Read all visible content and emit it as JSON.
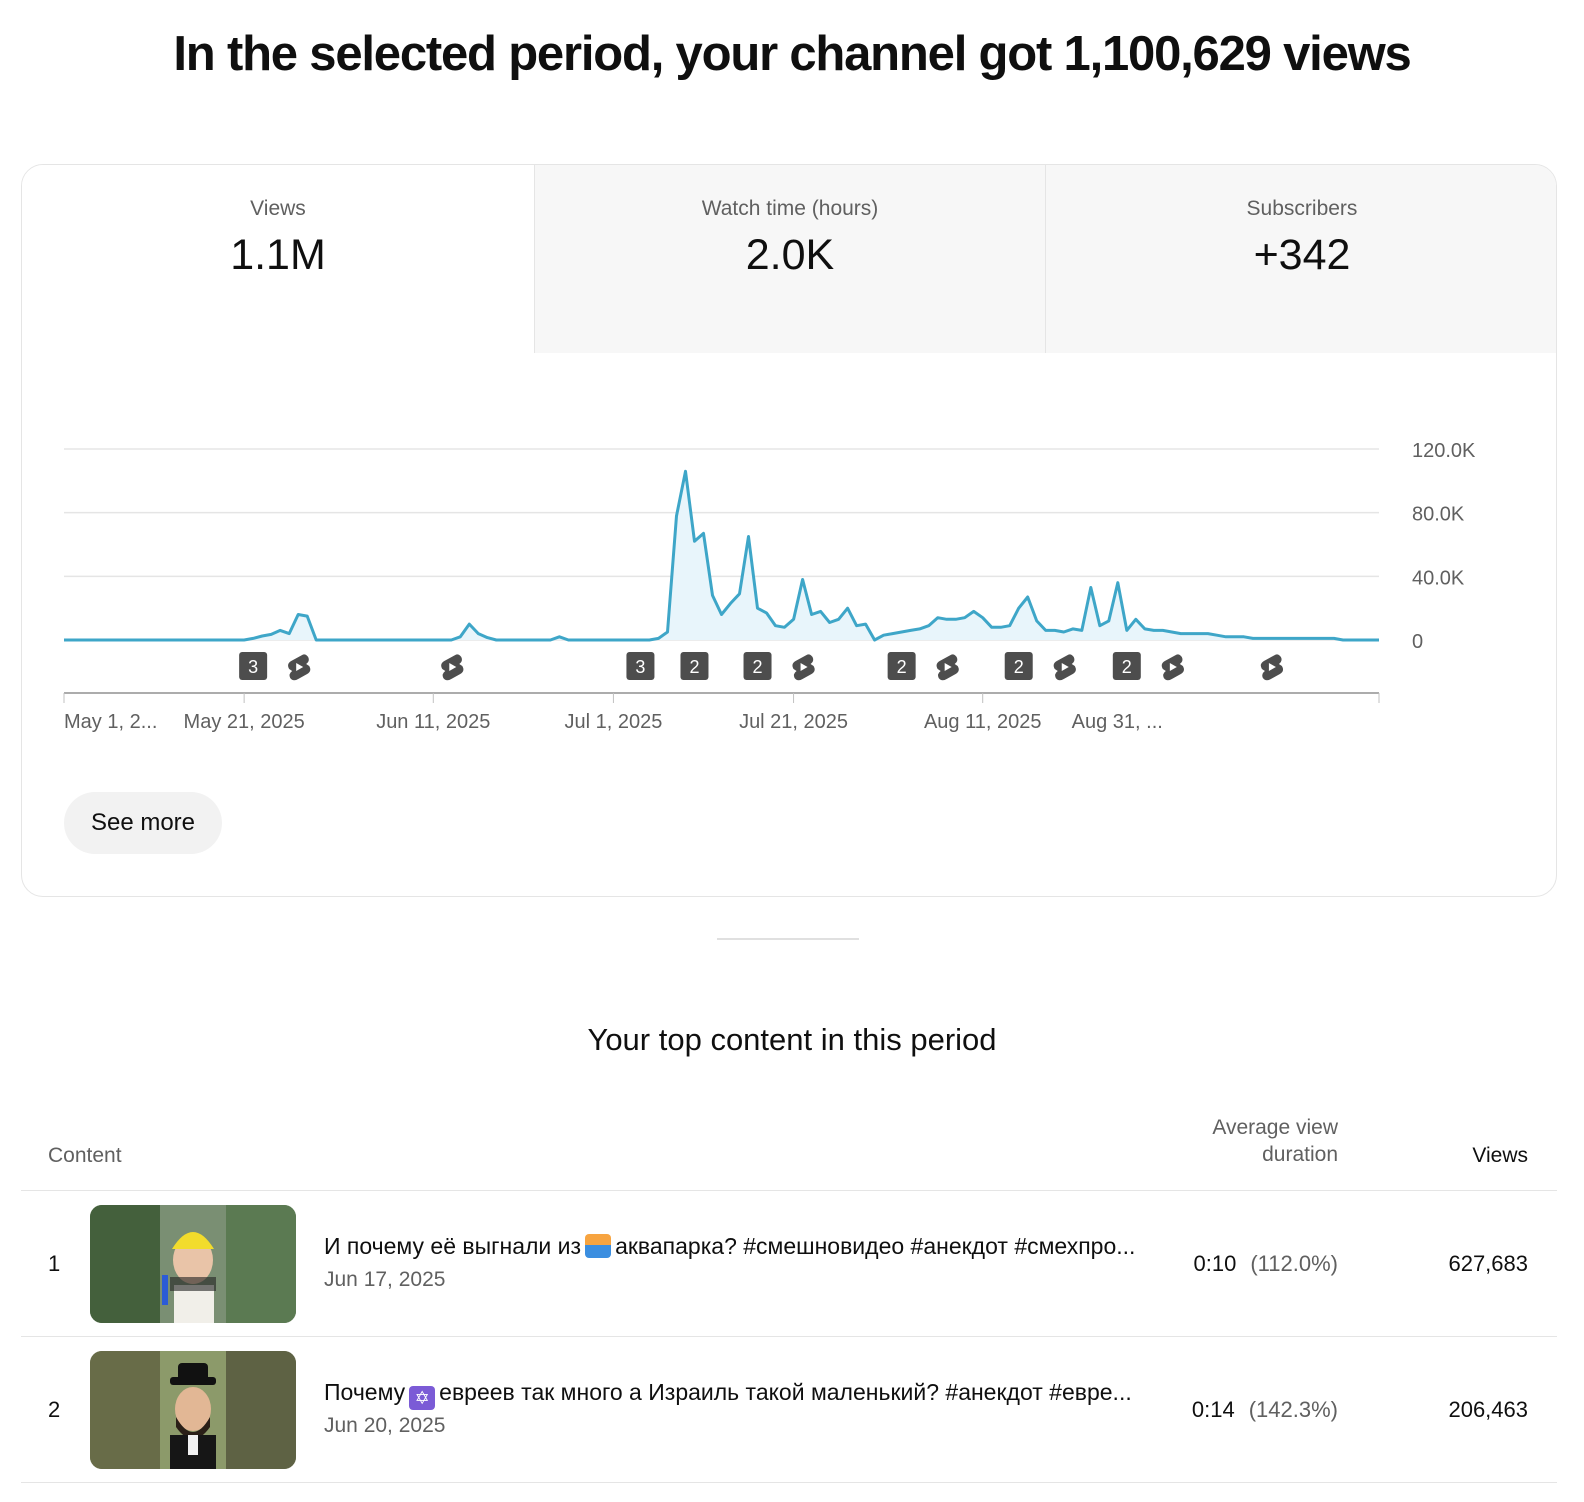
{
  "headline": "In the selected period, your channel got 1,100,629 views",
  "metrics": [
    {
      "label": "Views",
      "value": "1.1M"
    },
    {
      "label": "Watch time (hours)",
      "value": "2.0K"
    },
    {
      "label": "Subscribers",
      "value": "+342"
    }
  ],
  "colors": {
    "line": "#3ea6c8",
    "fill": "#e8f5fb",
    "grid": "#e5e5e5",
    "marker": "#4d4d4d"
  },
  "chart_data": {
    "type": "area",
    "series": [
      {
        "values": [
          0,
          0,
          0,
          0,
          0,
          0,
          0,
          0,
          0,
          0,
          0,
          0,
          0,
          0,
          0,
          0,
          0,
          0,
          0,
          0,
          0,
          1000,
          2500,
          3500,
          6000,
          4000,
          16000,
          15000,
          0,
          0,
          0,
          0,
          0,
          0,
          0,
          0,
          0,
          0,
          0,
          0,
          0,
          0,
          0,
          0,
          2000,
          10000,
          4000,
          1500,
          0,
          0,
          0,
          0,
          0,
          0,
          0,
          2000,
          0,
          0,
          0,
          0,
          0,
          0,
          0,
          0,
          0,
          0,
          1000,
          5000,
          78000,
          106000,
          62000,
          67000,
          28000,
          16000,
          23000,
          29000,
          65000,
          20000,
          17000,
          9000,
          8000,
          13000,
          38000,
          16000,
          18000,
          11000,
          13000,
          20000,
          9000,
          10000,
          0,
          3000,
          4000,
          5000,
          6000,
          7000,
          9000,
          14000,
          13000,
          13000,
          14000,
          18000,
          14000,
          8000,
          8000,
          9000,
          20000,
          27000,
          12000,
          6000,
          6000,
          5000,
          7000,
          6000,
          33000,
          9000,
          12000,
          36000,
          6000,
          13000,
          7000,
          6000,
          6000,
          5000,
          4000,
          4000,
          4000,
          4000,
          3000,
          2000,
          2000,
          2000,
          1000,
          1000,
          1000,
          1000,
          1000,
          1000,
          1000,
          1000,
          1000,
          1000,
          0,
          0,
          0,
          0,
          0
        ]
      }
    ],
    "x_start": "May 1, 2025",
    "x_end": "Aug 31, 2025",
    "x_tick_labels": [
      "May 1, 2...",
      "May 21, 2025",
      "Jun 11, 2025",
      "Jul 1, 2025",
      "Jul 21, 2025",
      "Aug 11, 2025",
      "Aug 31, ..."
    ],
    "y_tick_labels": [
      "120.0K",
      "80.0K",
      "40.0K",
      "0"
    ],
    "y_ticks": [
      120000,
      80000,
      40000,
      0
    ],
    "ylim": [
      0,
      120000
    ],
    "grid": true,
    "markers": [
      {
        "kind": "count",
        "label": "3",
        "day": 21
      },
      {
        "kind": "short",
        "day": 26
      },
      {
        "kind": "short",
        "day": 43
      },
      {
        "kind": "count",
        "label": "3",
        "day": 64
      },
      {
        "kind": "count",
        "label": "2",
        "day": 70
      },
      {
        "kind": "count",
        "label": "2",
        "day": 77
      },
      {
        "kind": "short",
        "day": 82
      },
      {
        "kind": "count",
        "label": "2",
        "day": 93
      },
      {
        "kind": "short",
        "day": 98
      },
      {
        "kind": "count",
        "label": "2",
        "day": 106
      },
      {
        "kind": "short",
        "day": 111
      },
      {
        "kind": "count",
        "label": "2",
        "day": 118
      },
      {
        "kind": "short",
        "day": 123
      },
      {
        "kind": "short",
        "day": 134
      }
    ]
  },
  "see_more_label": "See more",
  "top_content": {
    "title": "Your top content in this period",
    "columns": {
      "content": "Content",
      "avg_duration": "Average view duration",
      "views": "Views"
    },
    "rows": [
      {
        "rank": "1",
        "title_before": "И почему её выгнали из",
        "title_emoji": "person-swimming-emoji",
        "title_after": "аквапарка? #смешновидео #анекдот #смехпро...",
        "date": "Jun 17, 2025",
        "avg_duration": "0:10",
        "avg_pct": "(112.0%)",
        "views": "627,683",
        "thumb_color": "#4f6b45"
      },
      {
        "rank": "2",
        "title_before": "Почему",
        "title_emoji": "star-of-david-emoji",
        "title_after": "евреев так много а Израиль такой маленький? #анекдот #евре...",
        "date": "Jun 20, 2025",
        "avg_duration": "0:14",
        "avg_pct": "(142.3%)",
        "views": "206,463",
        "thumb_color": "#6b6f4d"
      }
    ]
  }
}
